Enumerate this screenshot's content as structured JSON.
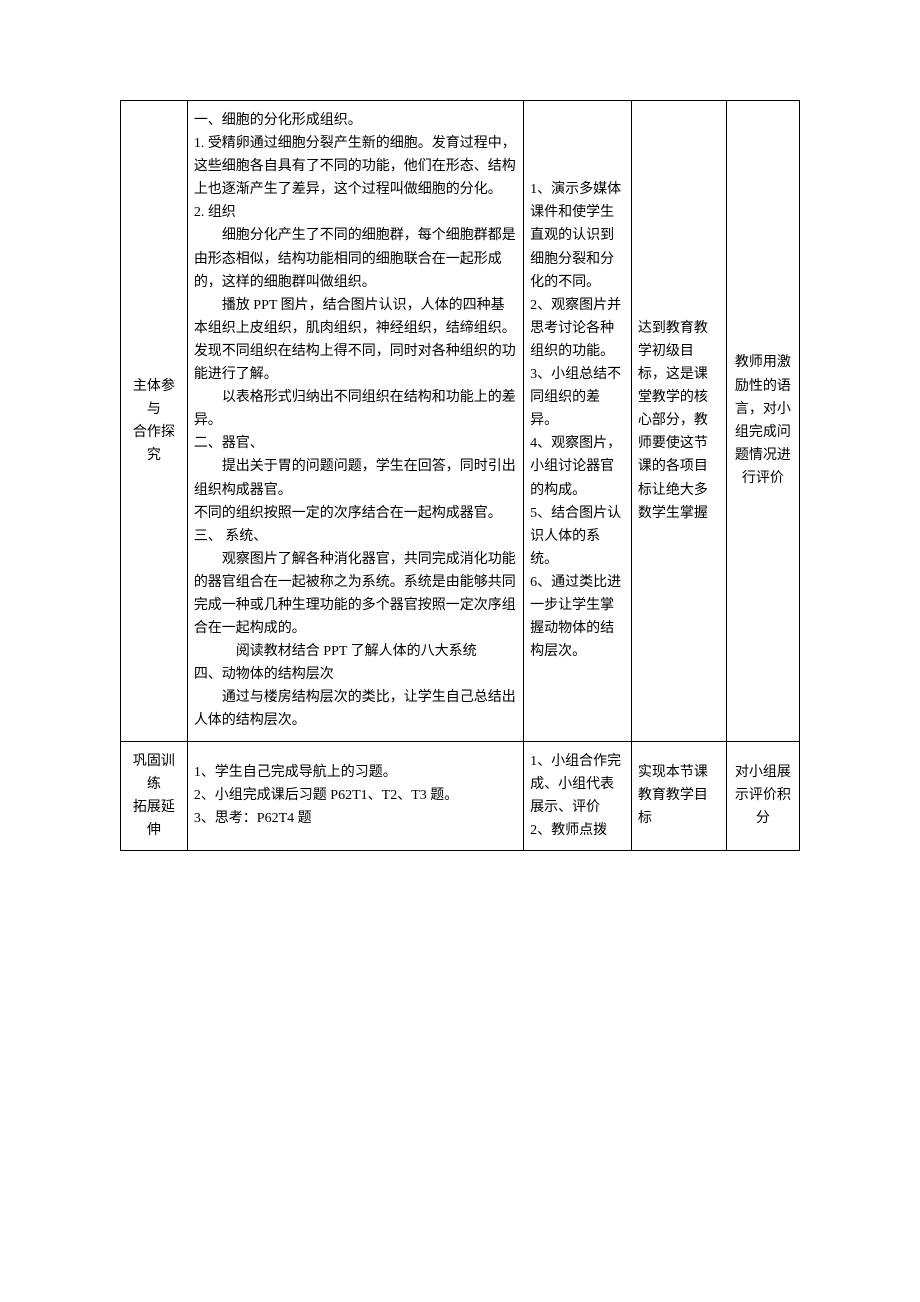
{
  "table": {
    "rows": [
      {
        "col1": "主体参与\n合作探究",
        "col2": {
          "lines": [
            {
              "text": "一、细胞的分化形成组织。",
              "cls": ""
            },
            {
              "text": "1.  受精卵通过细胞分裂产生新的细胞。发育过程中，这些细胞各自具有了不同的功能，他们在形态、结构上也逐渐产生了差异，这个过程叫做细胞的分化。",
              "cls": ""
            },
            {
              "text": "2. 组织",
              "cls": ""
            },
            {
              "text": "细胞分化产生了不同的细胞群，每个细胞群都是由形态相似，结构功能相同的细胞联合在一起形成的，这样的细胞群叫做组织。",
              "cls": "indent"
            },
            {
              "text": "播放 PPT 图片，结合图片认识，人体的四种基本组织上皮组织，肌肉组织，神经组织，结缔组织。发现不同组织在结构上得不同，同时对各种组织的功能进行了解。",
              "cls": "indent"
            },
            {
              "text": "以表格形式归纳出不同组织在结构和功能上的差异。",
              "cls": "indent"
            },
            {
              "text": "二、器官、",
              "cls": ""
            },
            {
              "text": "提出关于胃的问题问题，学生在回答，同时引出组织构成器官。",
              "cls": "indent"
            },
            {
              "text": "不同的组织按照一定的次序结合在一起构成器官。",
              "cls": ""
            },
            {
              "text": "三、  系统、",
              "cls": ""
            },
            {
              "text": "观察图片了解各种消化器官，共同完成消化功能的器官组合在一起被称之为系统。系统是由能够共同完成一种或几种生理功能的多个器官按照一定次序组合在一起构成的。",
              "cls": "indent"
            },
            {
              "text": "阅读教材结合 PPT 了解人体的八大系统",
              "cls": "indent-3"
            },
            {
              "text": "四、动物体的结构层次",
              "cls": ""
            },
            {
              "text": "通过与楼房结构层次的类比，让学生自己总结出人体的结构层次。",
              "cls": "indent"
            }
          ]
        },
        "col3": "1、演示多媒体课件和使学生直观的认识到细胞分裂和分化的不同。\n2、观察图片并思考讨论各种组织的功能。\n3、小组总结不同组织的差异。\n4、观察图片，小组讨论器官的构成。\n5、结合图片认识人体的系统。\n6、通过类比进一步让学生掌握动物体的结构层次。",
        "col4": "达到教育教学初级目标，这是课堂教学的核心部分，教师要使这节课的各项目标让绝大多数学生掌握",
        "col5": "教师用激励性的语言，对小组完成问题情况进\n行评价"
      },
      {
        "col1": "巩固训练\n拓展延伸",
        "col2": {
          "lines": [
            {
              "text": "1、学生自己完成导航上的习题。",
              "cls": ""
            },
            {
              "text": "2、小组完成课后习题 P62T1、T2、T3 题。",
              "cls": ""
            },
            {
              "text": "3、思考：P62T4 题",
              "cls": ""
            }
          ]
        },
        "col3": "1、小组合作完成、小组代表展示、评价\n2、教师点拨",
        "col4": "实现本节课教育教学目标",
        "col5": "对小组展示评价积分"
      }
    ]
  }
}
